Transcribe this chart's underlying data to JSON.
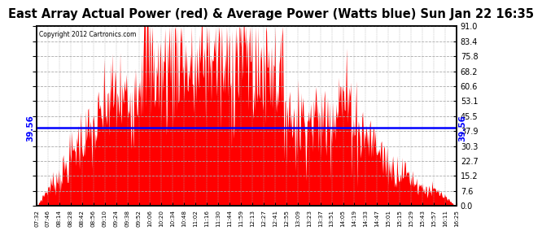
{
  "title": "East Array Actual Power (red) & Average Power (Watts blue) Sun Jan 22 16:35",
  "copyright": "Copyright 2012 Cartronics.com",
  "avg_power": 39.56,
  "y_max": 91.0,
  "y_min": 0.0,
  "y_ticks": [
    0.0,
    7.6,
    15.2,
    22.7,
    30.3,
    37.9,
    45.5,
    53.1,
    60.6,
    68.2,
    75.8,
    83.4,
    91.0
  ],
  "x_labels": [
    "07:32",
    "07:46",
    "08:14",
    "08:28",
    "08:42",
    "08:56",
    "09:10",
    "09:24",
    "09:38",
    "09:52",
    "10:06",
    "10:20",
    "10:34",
    "10:48",
    "11:02",
    "11:16",
    "11:30",
    "11:44",
    "11:59",
    "12:13",
    "12:27",
    "12:41",
    "12:55",
    "13:09",
    "13:23",
    "13:37",
    "13:51",
    "14:05",
    "14:19",
    "14:33",
    "14:47",
    "15:01",
    "15:15",
    "15:29",
    "15:43",
    "15:57",
    "16:11",
    "16:25"
  ],
  "bar_color": "#FF0000",
  "line_color": "#0000FF",
  "bg_color": "#FFFFFF",
  "grid_color": "#AAAAAA",
  "title_fontsize": 10.5,
  "avg_label": "39.56"
}
